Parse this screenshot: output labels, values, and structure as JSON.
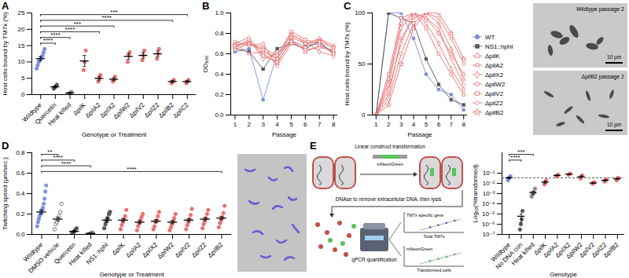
{
  "chart_data": [
    {
      "panel": "A",
      "type": "scatter",
      "x_label": "Genotype or Treatment",
      "y_label": "Host cells bound by TM7x (%)",
      "categories": [
        "Wildtype",
        "Quercetin",
        "Heat killed",
        "ΔpilK",
        "ΔpilA2",
        "ΔpilX2",
        "ΔpilW2",
        "ΔpilV2",
        "ΔpilZ2",
        "ΔpilB2",
        "ΔpilC2"
      ],
      "points": [
        [
          8,
          9,
          10,
          10.5,
          11,
          11.5,
          12,
          13,
          14
        ],
        [
          1.8,
          2.2,
          2.5,
          3
        ],
        [
          0.2,
          0.4,
          0.6,
          0.8
        ],
        [
          7.5,
          10,
          13.5
        ],
        [
          4,
          5,
          6
        ],
        [
          4,
          4.5,
          5.5
        ],
        [
          10,
          12,
          13
        ],
        [
          10.5,
          12,
          13.5
        ],
        [
          11,
          12.5,
          14
        ],
        [
          3.5,
          4,
          4.5
        ],
        [
          3.5,
          4,
          4.5
        ]
      ],
      "means": [
        11,
        2.4,
        0.5,
        10.3,
        5,
        4.7,
        11.7,
        12,
        12.5,
        4,
        4
      ],
      "errors": [
        0.65,
        0.3,
        0.15,
        1.7,
        0.6,
        0.45,
        0.9,
        0.9,
        0.9,
        0.3,
        0.3
      ],
      "colors": [
        "#7b8fe0",
        "#555555",
        "#888888",
        "#e8706f",
        "#e8706f",
        "#e8706f",
        "#e8706f",
        "#e8706f",
        "#e8706f",
        "#e8706f",
        "#e8706f"
      ],
      "markers": [
        "circle",
        "circle",
        "circle",
        "circle",
        "circle",
        "circle",
        "circle",
        "circle",
        "circle",
        "circle",
        "circle"
      ],
      "ylim": [
        0,
        25
      ],
      "yticks": [
        0,
        5,
        10,
        15,
        20,
        25
      ],
      "grid": false,
      "significance": [
        {
          "from": "Wildtype",
          "to": "Quercetin",
          "label": "****"
        },
        {
          "from": "Wildtype",
          "to": "Heat killed",
          "label": "****"
        },
        {
          "from": "Wildtype",
          "to": "ΔpilA2",
          "label": "****"
        },
        {
          "from": "Wildtype",
          "to": "ΔpilX2",
          "label": "***"
        },
        {
          "from": "Wildtype",
          "to": "ΔpilB2",
          "label": "****"
        },
        {
          "from": "Wildtype",
          "to": "ΔpilC2",
          "label": "***"
        }
      ]
    },
    {
      "panel": "B",
      "type": "line",
      "x_label": "Passage",
      "y_label": "OD₆₀₀",
      "x": [
        1,
        2,
        3,
        4,
        5,
        6,
        7,
        8
      ],
      "xlim": [
        0.7,
        8.3
      ],
      "xticks": [
        1,
        2,
        3,
        4,
        5,
        6,
        7,
        8
      ],
      "ylim": [
        0,
        1
      ],
      "yticks": [
        {
          "value": 0,
          "label": "0.0"
        },
        0.2,
        0.4,
        0.6,
        0.8,
        {
          "value": 1,
          "label": "1.0"
        }
      ],
      "grid": false,
      "legend": false,
      "series": [
        {
          "name": "WT",
          "color": "#7b8fe0",
          "marker": "circle",
          "values": [
            0.62,
            0.65,
            0.15,
            0.6,
            0.72,
            0.68,
            0.7,
            0.62
          ]
        },
        {
          "name": "NS1::hphI",
          "color": "#555555",
          "marker": "square",
          "values": [
            0.65,
            0.62,
            0.45,
            0.65,
            0.7,
            0.65,
            0.72,
            0.6
          ]
        },
        {
          "name": "ΔpilK",
          "color": "#e8706f",
          "marker": "triangle_open",
          "values": [
            0.68,
            0.72,
            0.6,
            0.5,
            0.75,
            0.62,
            0.68,
            0.62
          ]
        },
        {
          "name": "ΔpilA2",
          "color": "#e8706f",
          "marker": "triangle2_open",
          "values": [
            0.7,
            0.6,
            0.62,
            0.55,
            0.8,
            0.7,
            0.75,
            0.65
          ]
        },
        {
          "name": "ΔpilX2",
          "color": "#e8706f",
          "marker": "diamond_open",
          "values": [
            0.66,
            0.74,
            0.55,
            0.6,
            0.78,
            0.72,
            0.62,
            0.58
          ]
        },
        {
          "name": "ΔpilW2",
          "color": "#e8706f",
          "marker": "circle_open",
          "values": [
            0.72,
            0.68,
            0.7,
            0.48,
            0.7,
            0.66,
            0.75,
            0.68
          ]
        },
        {
          "name": "ΔpilV2",
          "color": "#e8706f",
          "marker": "square_open",
          "values": [
            0.64,
            0.7,
            0.66,
            0.58,
            0.82,
            0.74,
            0.7,
            0.6
          ]
        },
        {
          "name": "ΔpilZ2",
          "color": "#e8706f",
          "marker": "diamond2_open",
          "values": [
            0.7,
            0.76,
            0.58,
            0.52,
            0.72,
            0.64,
            0.66,
            0.64
          ]
        },
        {
          "name": "ΔpilB2",
          "color": "#e8706f",
          "marker": "star_open",
          "values": [
            0.68,
            0.7,
            0.64,
            0.55,
            0.76,
            0.7,
            0.72,
            0.66
          ]
        }
      ]
    },
    {
      "panel": "C",
      "type": "line",
      "x_label": "Passage",
      "y_label": "Host cells bound by TM7x (%)",
      "x": [
        1,
        2,
        3,
        4,
        5,
        6,
        7,
        8
      ],
      "xlim": [
        0.7,
        8.3
      ],
      "xticks": [
        1,
        2,
        3,
        4,
        5,
        6,
        7,
        8
      ],
      "ylim": [
        0,
        100
      ],
      "yticks": [
        0,
        50,
        100
      ],
      "grid": false,
      "legend": "right",
      "series": [
        {
          "name": "WT",
          "color": "#7b8fe0",
          "marker": "circle",
          "values": [
            0,
            100,
            100,
            75,
            40,
            25,
            20,
            5
          ]
        },
        {
          "name": "NS1::hphI",
          "color": "#555555",
          "marker": "square",
          "values": [
            0,
            100,
            95,
            90,
            55,
            30,
            15,
            10
          ]
        },
        {
          "name": "ΔpilK",
          "color": "#e8706f",
          "marker": "triangle_open",
          "values": [
            0,
            35,
            90,
            100,
            95,
            80,
            60,
            40
          ]
        },
        {
          "name": "ΔpilA2",
          "color": "#e8706f",
          "marker": "triangle2_open",
          "values": [
            0,
            20,
            75,
            95,
            100,
            90,
            65,
            35
          ]
        },
        {
          "name": "ΔpilX2",
          "color": "#e8706f",
          "marker": "diamond_open",
          "values": [
            0,
            30,
            85,
            100,
            90,
            70,
            45,
            25
          ]
        },
        {
          "name": "ΔpilW2",
          "color": "#e8706f",
          "marker": "circle_open",
          "values": [
            0,
            15,
            60,
            90,
            100,
            95,
            75,
            50
          ]
        },
        {
          "name": "ΔpilV2",
          "color": "#e8706f",
          "marker": "square_open",
          "values": [
            0,
            40,
            95,
            100,
            85,
            60,
            40,
            20
          ]
        },
        {
          "name": "ΔpilZ2",
          "color": "#e8706f",
          "marker": "diamond2_open",
          "values": [
            0,
            25,
            70,
            100,
            95,
            85,
            55,
            30
          ]
        },
        {
          "name": "ΔpilB2",
          "color": "#e8706f",
          "marker": "star_open",
          "values": [
            0,
            10,
            50,
            85,
            100,
            100,
            80,
            55
          ]
        }
      ]
    },
    {
      "panel": "D",
      "type": "scatter",
      "x_label": "Genotype or Treatment",
      "y_label": "Twitching speed (µm/sec.)",
      "categories": [
        "Wildtype",
        "DMSO vehicle",
        "Quercetin",
        "Heat killed",
        "NS1::hphI",
        "ΔpilK",
        "ΔpilA2",
        "ΔpilX2",
        "ΔpilW2",
        "ΔpilV2",
        "ΔpilZ2",
        "ΔpilB2"
      ],
      "points": [
        [
          0.08,
          0.12,
          0.15,
          0.18,
          0.2,
          0.22,
          0.24,
          0.26,
          0.3,
          0.35,
          0.42,
          0.48
        ],
        [
          0.05,
          0.1,
          0.12,
          0.15,
          0.18,
          0.22,
          0.3
        ],
        [
          0.01,
          0.02,
          0.03,
          0.05,
          0.06
        ],
        [
          0.005,
          0.01,
          0.015,
          0.02
        ],
        [
          0.06,
          0.1,
          0.13,
          0.16,
          0.2,
          0.22
        ],
        [
          0.05,
          0.09,
          0.12,
          0.15,
          0.18,
          0.24
        ],
        [
          0.04,
          0.08,
          0.11,
          0.14,
          0.17,
          0.2
        ],
        [
          0.05,
          0.08,
          0.12,
          0.14,
          0.18,
          0.22
        ],
        [
          0.04,
          0.07,
          0.1,
          0.13,
          0.16,
          0.2
        ],
        [
          0.05,
          0.09,
          0.12,
          0.15,
          0.19,
          0.25
        ],
        [
          0.06,
          0.1,
          0.13,
          0.16,
          0.2,
          0.24
        ],
        [
          0.07,
          0.11,
          0.14,
          0.17,
          0.21,
          0.28
        ]
      ],
      "means": [
        0.22,
        0.15,
        0.03,
        0.01,
        0.14,
        0.14,
        0.12,
        0.13,
        0.12,
        0.14,
        0.15,
        0.16
      ],
      "errors": [
        0.02,
        0.02,
        0.01,
        0.003,
        0.02,
        0.015,
        0.015,
        0.015,
        0.015,
        0.015,
        0.015,
        0.015
      ],
      "colors": [
        "#7b8fe0",
        "#555555",
        "#555555",
        "#888888",
        "#555555",
        "#e8706f",
        "#e8706f",
        "#e8706f",
        "#e8706f",
        "#e8706f",
        "#e8706f",
        "#e8706f"
      ],
      "markers": [
        "circle",
        "circle_open",
        "circle",
        "circle",
        "square",
        "circle",
        "circle",
        "circle",
        "circle",
        "circle",
        "circle",
        "circle"
      ],
      "ylim": [
        0,
        0.8
      ],
      "yticks": [
        {
          "value": 0,
          "label": "0.0"
        },
        0.2,
        0.4,
        0.6,
        0.8
      ],
      "grid": false,
      "significance": [
        {
          "from": "Wildtype",
          "to": "ΔpilB2",
          "label": "****"
        },
        {
          "from": "Wildtype",
          "to": "Heat killed",
          "label": "****"
        },
        {
          "from": "Wildtype",
          "to": "Quercetin",
          "label": "****"
        },
        {
          "from": "Wildtype",
          "to": "DMSO vehicle",
          "label": "**"
        }
      ]
    },
    {
      "panel": "E",
      "type": "scatter",
      "x_label": "Genotype",
      "y_label": "Log₁₀(%transformed)",
      "log": "y",
      "categories": [
        "Wildtype",
        "No DNA con",
        "Heat killed",
        "ΔpilK",
        "ΔpilA2",
        "ΔpilX2",
        "ΔpilW2",
        "ΔpilV2",
        "ΔpilZ2",
        "ΔpilB2"
      ],
      "points": [
        [
          0.02,
          0.03,
          0.04,
          0.05
        ],
        [
          3e-07,
          1e-06,
          3e-06,
          2e-05
        ],
        [
          0.0005,
          0.0008,
          0.001,
          0.0012,
          0.003
        ],
        [
          0.008,
          0.012,
          0.02
        ],
        [
          0.05,
          0.06,
          0.07
        ],
        [
          0.07,
          0.08,
          0.09
        ],
        [
          0.03,
          0.045,
          0.06
        ],
        [
          0.009,
          0.011,
          0.013
        ],
        [
          0.015,
          0.02,
          0.025
        ],
        [
          0.02,
          0.03,
          0.035
        ]
      ],
      "means": [
        0.035,
        6e-06,
        0.0013,
        0.0133,
        0.06,
        0.08,
        0.045,
        0.011,
        0.02,
        0.028
      ],
      "errors": [
        0.0065,
        4.5e-06,
        0.00045,
        0.0035,
        0.006,
        0.006,
        0.009,
        0.0012,
        0.003,
        0.0045
      ],
      "colors": [
        "#7b8fe0",
        "#555555",
        "#888888",
        "#e8706f",
        "#e8706f",
        "#e8706f",
        "#e8706f",
        "#e8706f",
        "#e8706f",
        "#e8706f"
      ],
      "markers": [
        "circle",
        "circle",
        "circle",
        "circle",
        "circle",
        "circle",
        "circle",
        "circle",
        "circle",
        "circle"
      ],
      "ylim": [
        1e-07,
        10
      ],
      "yticks": [
        {
          "value": 1e-07,
          "label": "10⁻⁷"
        },
        {
          "value": 1e-06,
          "label": "10⁻⁶"
        },
        {
          "value": 1e-05,
          "label": "10⁻⁵"
        },
        {
          "value": 0.0001,
          "label": "10⁻⁴"
        },
        {
          "value": 0.001,
          "label": "10⁻³"
        },
        {
          "value": 0.01,
          "label": "10⁻²"
        },
        {
          "value": 0.1,
          "label": "10⁻¹"
        }
      ],
      "grid": false,
      "reference_line": {
        "value": 0.035,
        "line_style": "dashed"
      },
      "significance": [
        {
          "from": "Wildtype",
          "to": "No DNA con",
          "label": "****"
        },
        {
          "from": "Wildtype",
          "to": "Heat killed",
          "label": "***"
        }
      ]
    }
  ],
  "images": [
    {
      "label": "Wildtype passage 2",
      "scale_bar": "10 µm"
    },
    {
      "label": "ΔpilB2 passage 2",
      "scale_bar": "10 µm"
    }
  ],
  "schematic": {
    "step1": "Linear construct transformation",
    "construct": "mNeonGreen",
    "step2": "DNAse to remove extracellular DNA, then lysis",
    "step3": "qPCR quantification",
    "curves": [
      {
        "y_label": "TM7x specific gene",
        "x_label": "Total TM7s"
      },
      {
        "y_label": "mNeonGreen",
        "x_label": "Transformed cells"
      }
    ]
  }
}
